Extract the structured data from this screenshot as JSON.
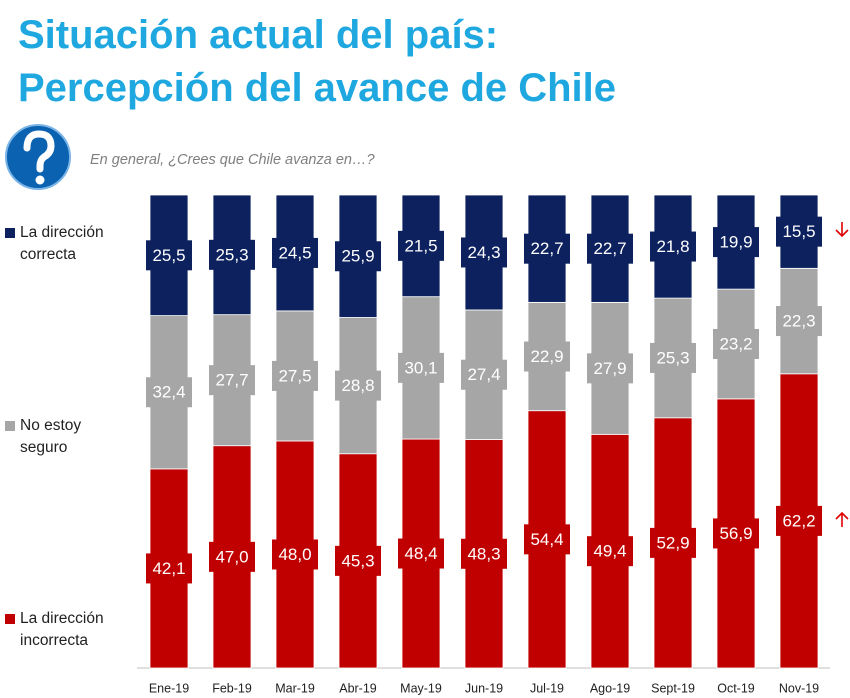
{
  "chart_data": {
    "type": "bar",
    "stacked": true,
    "title": [
      "Situación actual del país:",
      "Percepción del avance de Chile"
    ],
    "subtitle": "En general,  ¿Crees que Chile avanza en…?",
    "categories": [
      "Ene-19",
      "Feb-19",
      "Mar-19",
      "Abr-19",
      "May-19",
      "Jun-19",
      "Jul-19",
      "Ago-19",
      "Sept-19",
      "Oct-19",
      "Nov-19"
    ],
    "series": [
      {
        "name": "La dirección incorrecta",
        "color": "#c00000",
        "values": [
          42.1,
          47.0,
          48.0,
          45.3,
          48.4,
          48.3,
          54.4,
          49.4,
          52.9,
          56.9,
          62.2
        ],
        "value_labels": [
          "42,1",
          "47,0",
          "48,0",
          "45,3",
          "48,4",
          "48,3",
          "54,4",
          "49,4",
          "52,9",
          "56,9",
          "62,2"
        ]
      },
      {
        "name": "No estoy seguro",
        "color": "#a6a6a6",
        "values": [
          32.4,
          27.7,
          27.5,
          28.8,
          30.1,
          27.4,
          22.9,
          27.9,
          25.3,
          23.2,
          22.3
        ],
        "value_labels": [
          "32,4",
          "27,7",
          "27,5",
          "28,8",
          "30,1",
          "27,4",
          "22,9",
          "27,9",
          "25,3",
          "23,2",
          "22,3"
        ]
      },
      {
        "name": "La dirección correcta",
        "color": "#0c215e",
        "values": [
          25.5,
          25.3,
          24.5,
          25.9,
          21.5,
          24.3,
          22.7,
          22.7,
          21.8,
          19.9,
          15.5
        ],
        "value_labels": [
          "25,5",
          "25,3",
          "24,5",
          "25,9",
          "21,5",
          "24,3",
          "22,7",
          "22,7",
          "21,8",
          "19,9",
          "15,5"
        ]
      }
    ]
  }
}
